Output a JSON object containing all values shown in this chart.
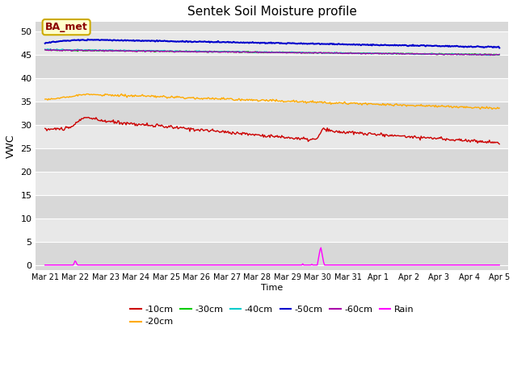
{
  "title": "Sentek Soil Moisture profile",
  "xlabel": "Time",
  "ylabel": "VWC",
  "annotation_text": "BA_met",
  "ylim": [
    -1,
    52
  ],
  "yticks": [
    0,
    5,
    10,
    15,
    20,
    25,
    30,
    35,
    40,
    45,
    50
  ],
  "x_labels": [
    "Mar 21",
    "Mar 22",
    "Mar 23",
    "Mar 24",
    "Mar 25",
    "Mar 26",
    "Mar 27",
    "Mar 28",
    "Mar 29",
    "Mar 30",
    "Mar 31",
    "Apr 1",
    "Apr 2",
    "Apr 3",
    "Apr 4",
    "Apr 5"
  ],
  "colors": {
    "-10cm": "#cc0000",
    "-20cm": "#ffaa00",
    "-30cm": "#00cc00",
    "-40cm": "#00cccc",
    "-50cm": "#0000cc",
    "-60cm": "#aa00aa",
    "Rain": "#ff00ff"
  },
  "fig_bg": "#ffffff",
  "plot_bg": "#d8d8d8",
  "band_colors": [
    "#d8d8d8",
    "#e8e8e8"
  ],
  "n_points": 500
}
